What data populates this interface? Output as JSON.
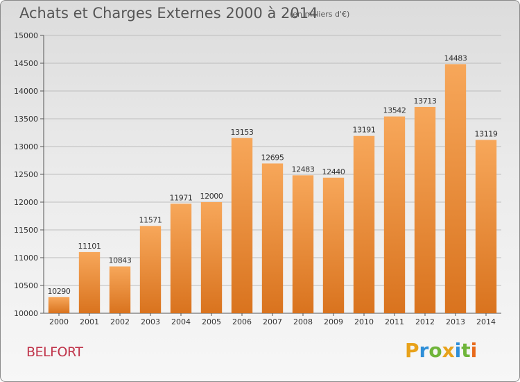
{
  "header": {
    "title": "Achats et Charges Externes 2000 à 2014",
    "subtitle": "(en milliers d'€)"
  },
  "footer": {
    "city": "BELFORT",
    "logo_text": "Proxiti",
    "logo_colors": [
      "#e8a21b",
      "#2f8fd8",
      "#6fb53a",
      "#e8a21b",
      "#2f8fd8",
      "#6fb53a",
      "#e86a1b"
    ]
  },
  "colors": {
    "bar_top": "#f7a75a",
    "bar_bottom": "#d9731e",
    "grid": "#bdbdbd"
  },
  "chart_data": {
    "type": "bar",
    "title": "Achats et Charges Externes 2000 à 2014",
    "subtitle": "(en milliers d'€)",
    "categories": [
      "2000",
      "2001",
      "2002",
      "2003",
      "2004",
      "2005",
      "2006",
      "2007",
      "2008",
      "2009",
      "2010",
      "2011",
      "2012",
      "2013",
      "2014"
    ],
    "values": [
      10290,
      11101,
      10843,
      11571,
      11971,
      12000,
      13153,
      12695,
      12483,
      12440,
      13191,
      13542,
      13713,
      14483,
      13119
    ],
    "ylim": [
      10000,
      15000
    ],
    "yticks": [
      10000,
      10500,
      11000,
      11500,
      12000,
      12500,
      13000,
      13500,
      14000,
      14500,
      15000
    ],
    "xlabel": "",
    "ylabel": "",
    "grid": true
  }
}
